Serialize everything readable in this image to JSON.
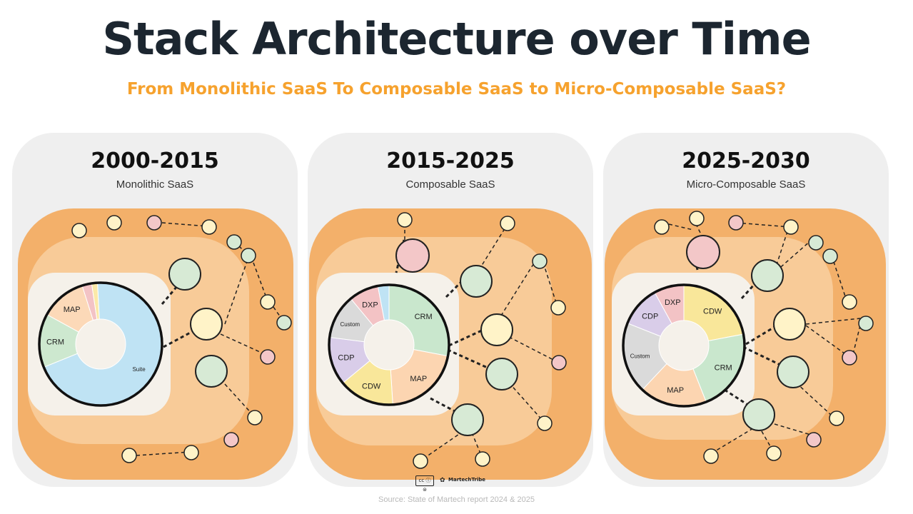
{
  "header": {
    "title": "Stack Architecture over Time",
    "subtitle": "From Monolithic SaaS To Composable SaaS to Micro-Composable SaaS?"
  },
  "panels": [
    {
      "era": "2000-2015",
      "label": "Monolithic SaaS",
      "segments": [
        {
          "name": "Suite",
          "share": 0.69,
          "color": "#bfe3f4"
        },
        {
          "name": "CRM",
          "share": 0.14,
          "color": "#cde8cf"
        },
        {
          "name": "MAP",
          "share": 0.12,
          "color": "#fcd9b8"
        },
        {
          "name": "",
          "share": 0.025,
          "color": "#f3c3c5"
        },
        {
          "name": "",
          "share": 0.015,
          "color": "#fbe9a8"
        }
      ]
    },
    {
      "era": "2015-2025",
      "label": "Composable SaaS",
      "segments": [
        {
          "name": "CRM",
          "share": 0.28,
          "color": "#c9e7cd"
        },
        {
          "name": "MAP",
          "share": 0.21,
          "color": "#fcd5b1"
        },
        {
          "name": "CDW",
          "share": 0.15,
          "color": "#f9e79a"
        },
        {
          "name": "CDP",
          "share": 0.13,
          "color": "#d9cde9"
        },
        {
          "name": "Custom",
          "share": 0.12,
          "color": "#dadada"
        },
        {
          "name": "DXP",
          "share": 0.08,
          "color": "#f3c3c5"
        },
        {
          "name": "",
          "share": 0.03,
          "color": "#bfe3f4"
        }
      ]
    },
    {
      "era": "2025-2030",
      "label": "Micro-Composable SaaS",
      "segments": [
        {
          "name": "CDW",
          "share": 0.22,
          "color": "#f9e79a"
        },
        {
          "name": "CRM",
          "share": 0.22,
          "color": "#c9e7cd"
        },
        {
          "name": "MAP",
          "share": 0.18,
          "color": "#fcd5b1"
        },
        {
          "name": "Custom",
          "share": 0.19,
          "color": "#dadada"
        },
        {
          "name": "CDP",
          "share": 0.11,
          "color": "#d9cde9"
        },
        {
          "name": "DXP",
          "share": 0.08,
          "color": "#f3c3c5"
        }
      ]
    }
  ],
  "colors": {
    "orange_outer": "#f3b06a",
    "orange_mid": "#f8cb98",
    "core_bg": "#f5f1ea",
    "node_green": "#d7ead5",
    "node_yellow": "#fff3c8",
    "node_pink": "#f3c7c8",
    "accent": "#f6a22e"
  },
  "footer": {
    "source": "Source: State of Martech report 2024 & 2025",
    "cc_badge": "cc ⓘ ⊜",
    "brand": "MartechTribe"
  }
}
